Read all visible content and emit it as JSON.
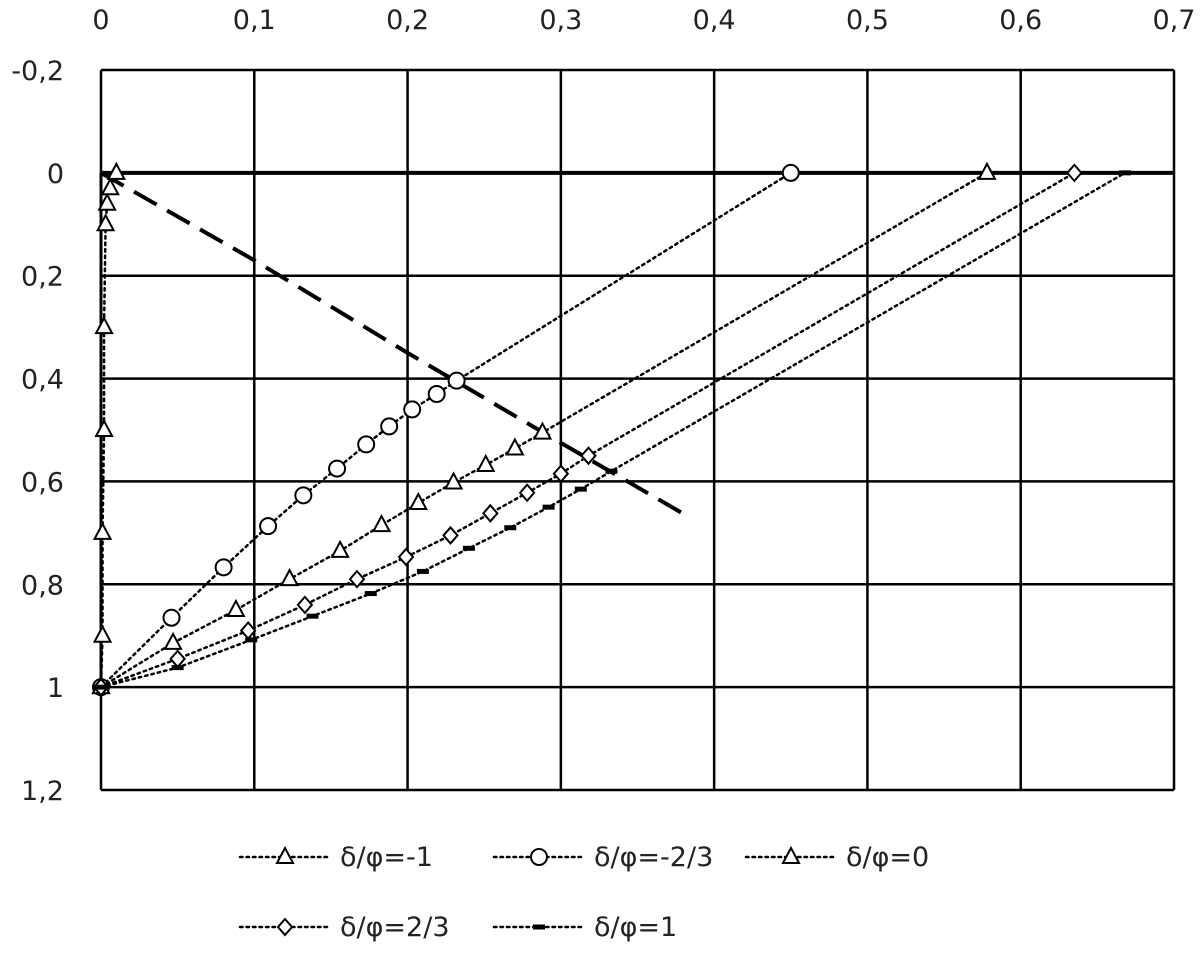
{
  "chart_data": {
    "type": "scatter",
    "title": "",
    "xlabel": "",
    "ylabel": "",
    "x_axis_position": "top",
    "y_axis_inverted": true,
    "xlim": [
      0,
      0.7
    ],
    "ylim": [
      -0.2,
      1.2
    ],
    "x_ticks": [
      0,
      0.1,
      0.2,
      0.3,
      0.4,
      0.5,
      0.6,
      0.7
    ],
    "x_tick_labels": [
      "0",
      "0,1",
      "0,2",
      "0,3",
      "0,4",
      "0,5",
      "0,6",
      "0,7"
    ],
    "y_ticks": [
      -0.2,
      0,
      0.2,
      0.4,
      0.6,
      0.8,
      1,
      1.2
    ],
    "y_tick_labels": [
      "-0,2",
      "0",
      "0,2",
      "0,4",
      "0,6",
      "0,8",
      "1",
      "1,2"
    ],
    "grid": true,
    "legend_position": "bottom",
    "series": [
      {
        "name": "δ/φ=-1",
        "marker": "triangle",
        "points": [
          [
            0,
            1
          ],
          [
            0.001,
            0.9
          ],
          [
            0.001,
            0.7
          ],
          [
            0.002,
            0.5
          ],
          [
            0.002,
            0.3
          ],
          [
            0.003,
            0.1
          ],
          [
            0.004,
            0.06
          ],
          [
            0.006,
            0.03
          ],
          [
            0.01,
            0
          ]
        ]
      },
      {
        "name": "δ/φ=-2/3",
        "marker": "circle",
        "points": [
          [
            0,
            1
          ],
          [
            0.046,
            0.865
          ],
          [
            0.08,
            0.767
          ],
          [
            0.109,
            0.687
          ],
          [
            0.132,
            0.627
          ],
          [
            0.154,
            0.575
          ],
          [
            0.173,
            0.528
          ],
          [
            0.188,
            0.493
          ],
          [
            0.203,
            0.46
          ],
          [
            0.219,
            0.43
          ],
          [
            0.232,
            0.404
          ],
          [
            0.45,
            0
          ]
        ]
      },
      {
        "name": "δ/φ=0",
        "marker": "triangle",
        "points": [
          [
            0,
            1
          ],
          [
            0.047,
            0.914
          ],
          [
            0.088,
            0.85
          ],
          [
            0.123,
            0.79
          ],
          [
            0.156,
            0.735
          ],
          [
            0.183,
            0.685
          ],
          [
            0.207,
            0.642
          ],
          [
            0.23,
            0.602
          ],
          [
            0.251,
            0.568
          ],
          [
            0.27,
            0.536
          ],
          [
            0.288,
            0.505
          ],
          [
            0.578,
            0
          ]
        ]
      },
      {
        "name": "δ/φ=2/3",
        "marker": "diamond",
        "points": [
          [
            0,
            1
          ],
          [
            0.05,
            0.945
          ],
          [
            0.096,
            0.89
          ],
          [
            0.133,
            0.84
          ],
          [
            0.167,
            0.79
          ],
          [
            0.199,
            0.747
          ],
          [
            0.228,
            0.705
          ],
          [
            0.254,
            0.662
          ],
          [
            0.278,
            0.622
          ],
          [
            0.3,
            0.585
          ],
          [
            0.318,
            0.55
          ],
          [
            0.635,
            0
          ]
        ]
      },
      {
        "name": "δ/φ=1",
        "marker": "dash",
        "points": [
          [
            0,
            1
          ],
          [
            0.05,
            0.962
          ],
          [
            0.098,
            0.908
          ],
          [
            0.138,
            0.862
          ],
          [
            0.176,
            0.818
          ],
          [
            0.21,
            0.775
          ],
          [
            0.24,
            0.73
          ],
          [
            0.267,
            0.69
          ],
          [
            0.292,
            0.65
          ],
          [
            0.313,
            0.615
          ],
          [
            0.333,
            0.58
          ],
          [
            0.668,
            0
          ]
        ]
      }
    ],
    "dashed_line": {
      "points": [
        [
          0,
          0
        ],
        [
          0.1,
          0.17
        ],
        [
          0.2,
          0.35
        ],
        [
          0.3,
          0.525
        ],
        [
          0.38,
          0.663
        ]
      ]
    },
    "horizontal_line_y": 0
  },
  "legend": {
    "items": [
      "δ/φ=-1",
      "δ/φ=-2/3",
      "δ/φ=0",
      "δ/φ=2/3",
      "δ/φ=1"
    ]
  }
}
